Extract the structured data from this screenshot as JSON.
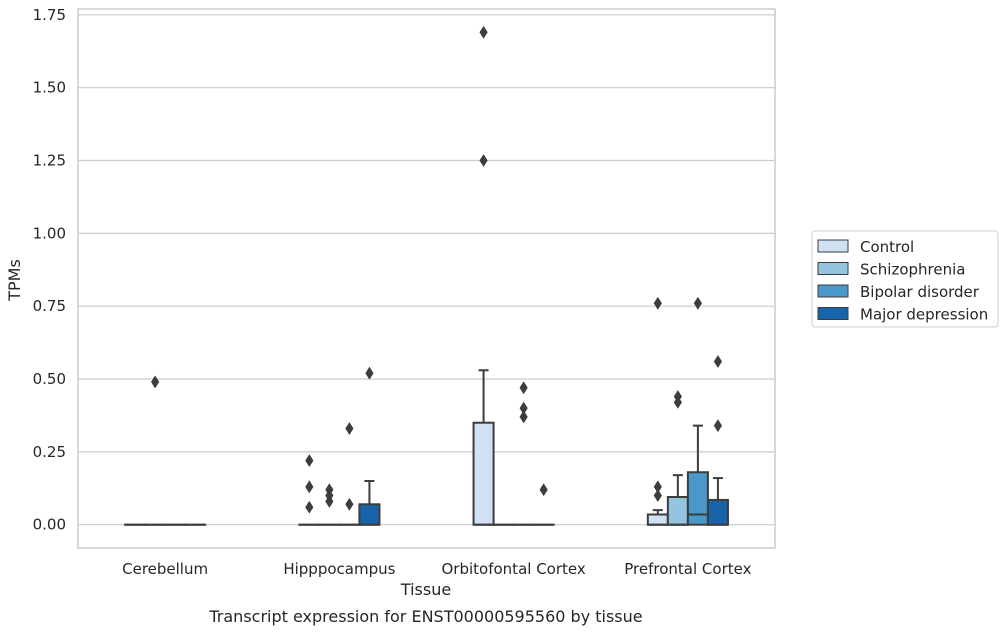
{
  "caption": "Transcript expression for ENST00000595560 by tissue",
  "chart_data": {
    "type": "box",
    "xlabel": "Tissue",
    "ylabel": "TPMs",
    "ylim": [
      -0.08,
      1.77
    ],
    "yticks": [
      0.0,
      0.25,
      0.5,
      0.75,
      1.0,
      1.25,
      1.5,
      1.75
    ],
    "ytick_labels": [
      "0.00",
      "0.25",
      "0.50",
      "0.75",
      "1.00",
      "1.25",
      "1.50",
      "1.75"
    ],
    "grid": "horizontal",
    "legend_position": "right",
    "categories": [
      "Cerebellum",
      "Hipppocampus",
      "Orbitofontal Cortex",
      "Prefrontal Cortex"
    ],
    "series": [
      {
        "name": "Control",
        "color": "#d0e1f2",
        "boxes": [
          {
            "q1": 0.0,
            "median": 0.0,
            "q3": 0.0,
            "whisker_low": 0.0,
            "whisker_high": 0.0,
            "outliers": []
          },
          {
            "q1": 0.0,
            "median": 0.0,
            "q3": 0.0,
            "whisker_low": 0.0,
            "whisker_high": 0.0,
            "outliers": [
              0.06,
              0.13,
              0.22
            ]
          },
          {
            "q1": 0.0,
            "median": 0.0,
            "q3": 0.35,
            "whisker_low": 0.0,
            "whisker_high": 0.53,
            "outliers": [
              1.25,
              1.69
            ]
          },
          {
            "q1": 0.0,
            "median": 0.0,
            "q3": 0.035,
            "whisker_low": 0.0,
            "whisker_high": 0.05,
            "outliers": [
              0.1,
              0.13,
              0.76
            ]
          }
        ]
      },
      {
        "name": "Schizophrenia",
        "color": "#94c4df",
        "boxes": [
          {
            "q1": 0.0,
            "median": 0.0,
            "q3": 0.0,
            "whisker_low": 0.0,
            "whisker_high": 0.0,
            "outliers": [
              0.49
            ]
          },
          {
            "q1": 0.0,
            "median": 0.0,
            "q3": 0.0,
            "whisker_low": 0.0,
            "whisker_high": 0.0,
            "outliers": [
              0.08,
              0.1,
              0.12
            ]
          },
          {
            "q1": 0.0,
            "median": 0.0,
            "q3": 0.0,
            "whisker_low": 0.0,
            "whisker_high": 0.0,
            "outliers": []
          },
          {
            "q1": 0.0,
            "median": 0.0,
            "q3": 0.095,
            "whisker_low": 0.0,
            "whisker_high": 0.17,
            "outliers": [
              0.42,
              0.44
            ]
          }
        ]
      },
      {
        "name": "Bipolar disorder",
        "color": "#4a98c9",
        "boxes": [
          {
            "q1": 0.0,
            "median": 0.0,
            "q3": 0.0,
            "whisker_low": 0.0,
            "whisker_high": 0.0,
            "outliers": []
          },
          {
            "q1": 0.0,
            "median": 0.0,
            "q3": 0.0,
            "whisker_low": 0.0,
            "whisker_high": 0.0,
            "outliers": [
              0.07,
              0.33
            ]
          },
          {
            "q1": 0.0,
            "median": 0.0,
            "q3": 0.0,
            "whisker_low": 0.0,
            "whisker_high": 0.0,
            "outliers": [
              0.37,
              0.4,
              0.47
            ]
          },
          {
            "q1": 0.0,
            "median": 0.035,
            "q3": 0.18,
            "whisker_low": 0.0,
            "whisker_high": 0.34,
            "outliers": [
              0.76
            ]
          }
        ]
      },
      {
        "name": "Major depression",
        "color": "#1764ab",
        "boxes": [
          {
            "q1": 0.0,
            "median": 0.0,
            "q3": 0.0,
            "whisker_low": 0.0,
            "whisker_high": 0.0,
            "outliers": []
          },
          {
            "q1": 0.0,
            "median": 0.0,
            "q3": 0.07,
            "whisker_low": 0.0,
            "whisker_high": 0.15,
            "outliers": [
              0.52
            ]
          },
          {
            "q1": 0.0,
            "median": 0.0,
            "q3": 0.0,
            "whisker_low": 0.0,
            "whisker_high": 0.0,
            "outliers": [
              0.12
            ]
          },
          {
            "q1": 0.0,
            "median": 0.0,
            "q3": 0.085,
            "whisker_low": 0.0,
            "whisker_high": 0.16,
            "outliers": [
              0.34,
              0.56
            ]
          }
        ]
      }
    ]
  }
}
